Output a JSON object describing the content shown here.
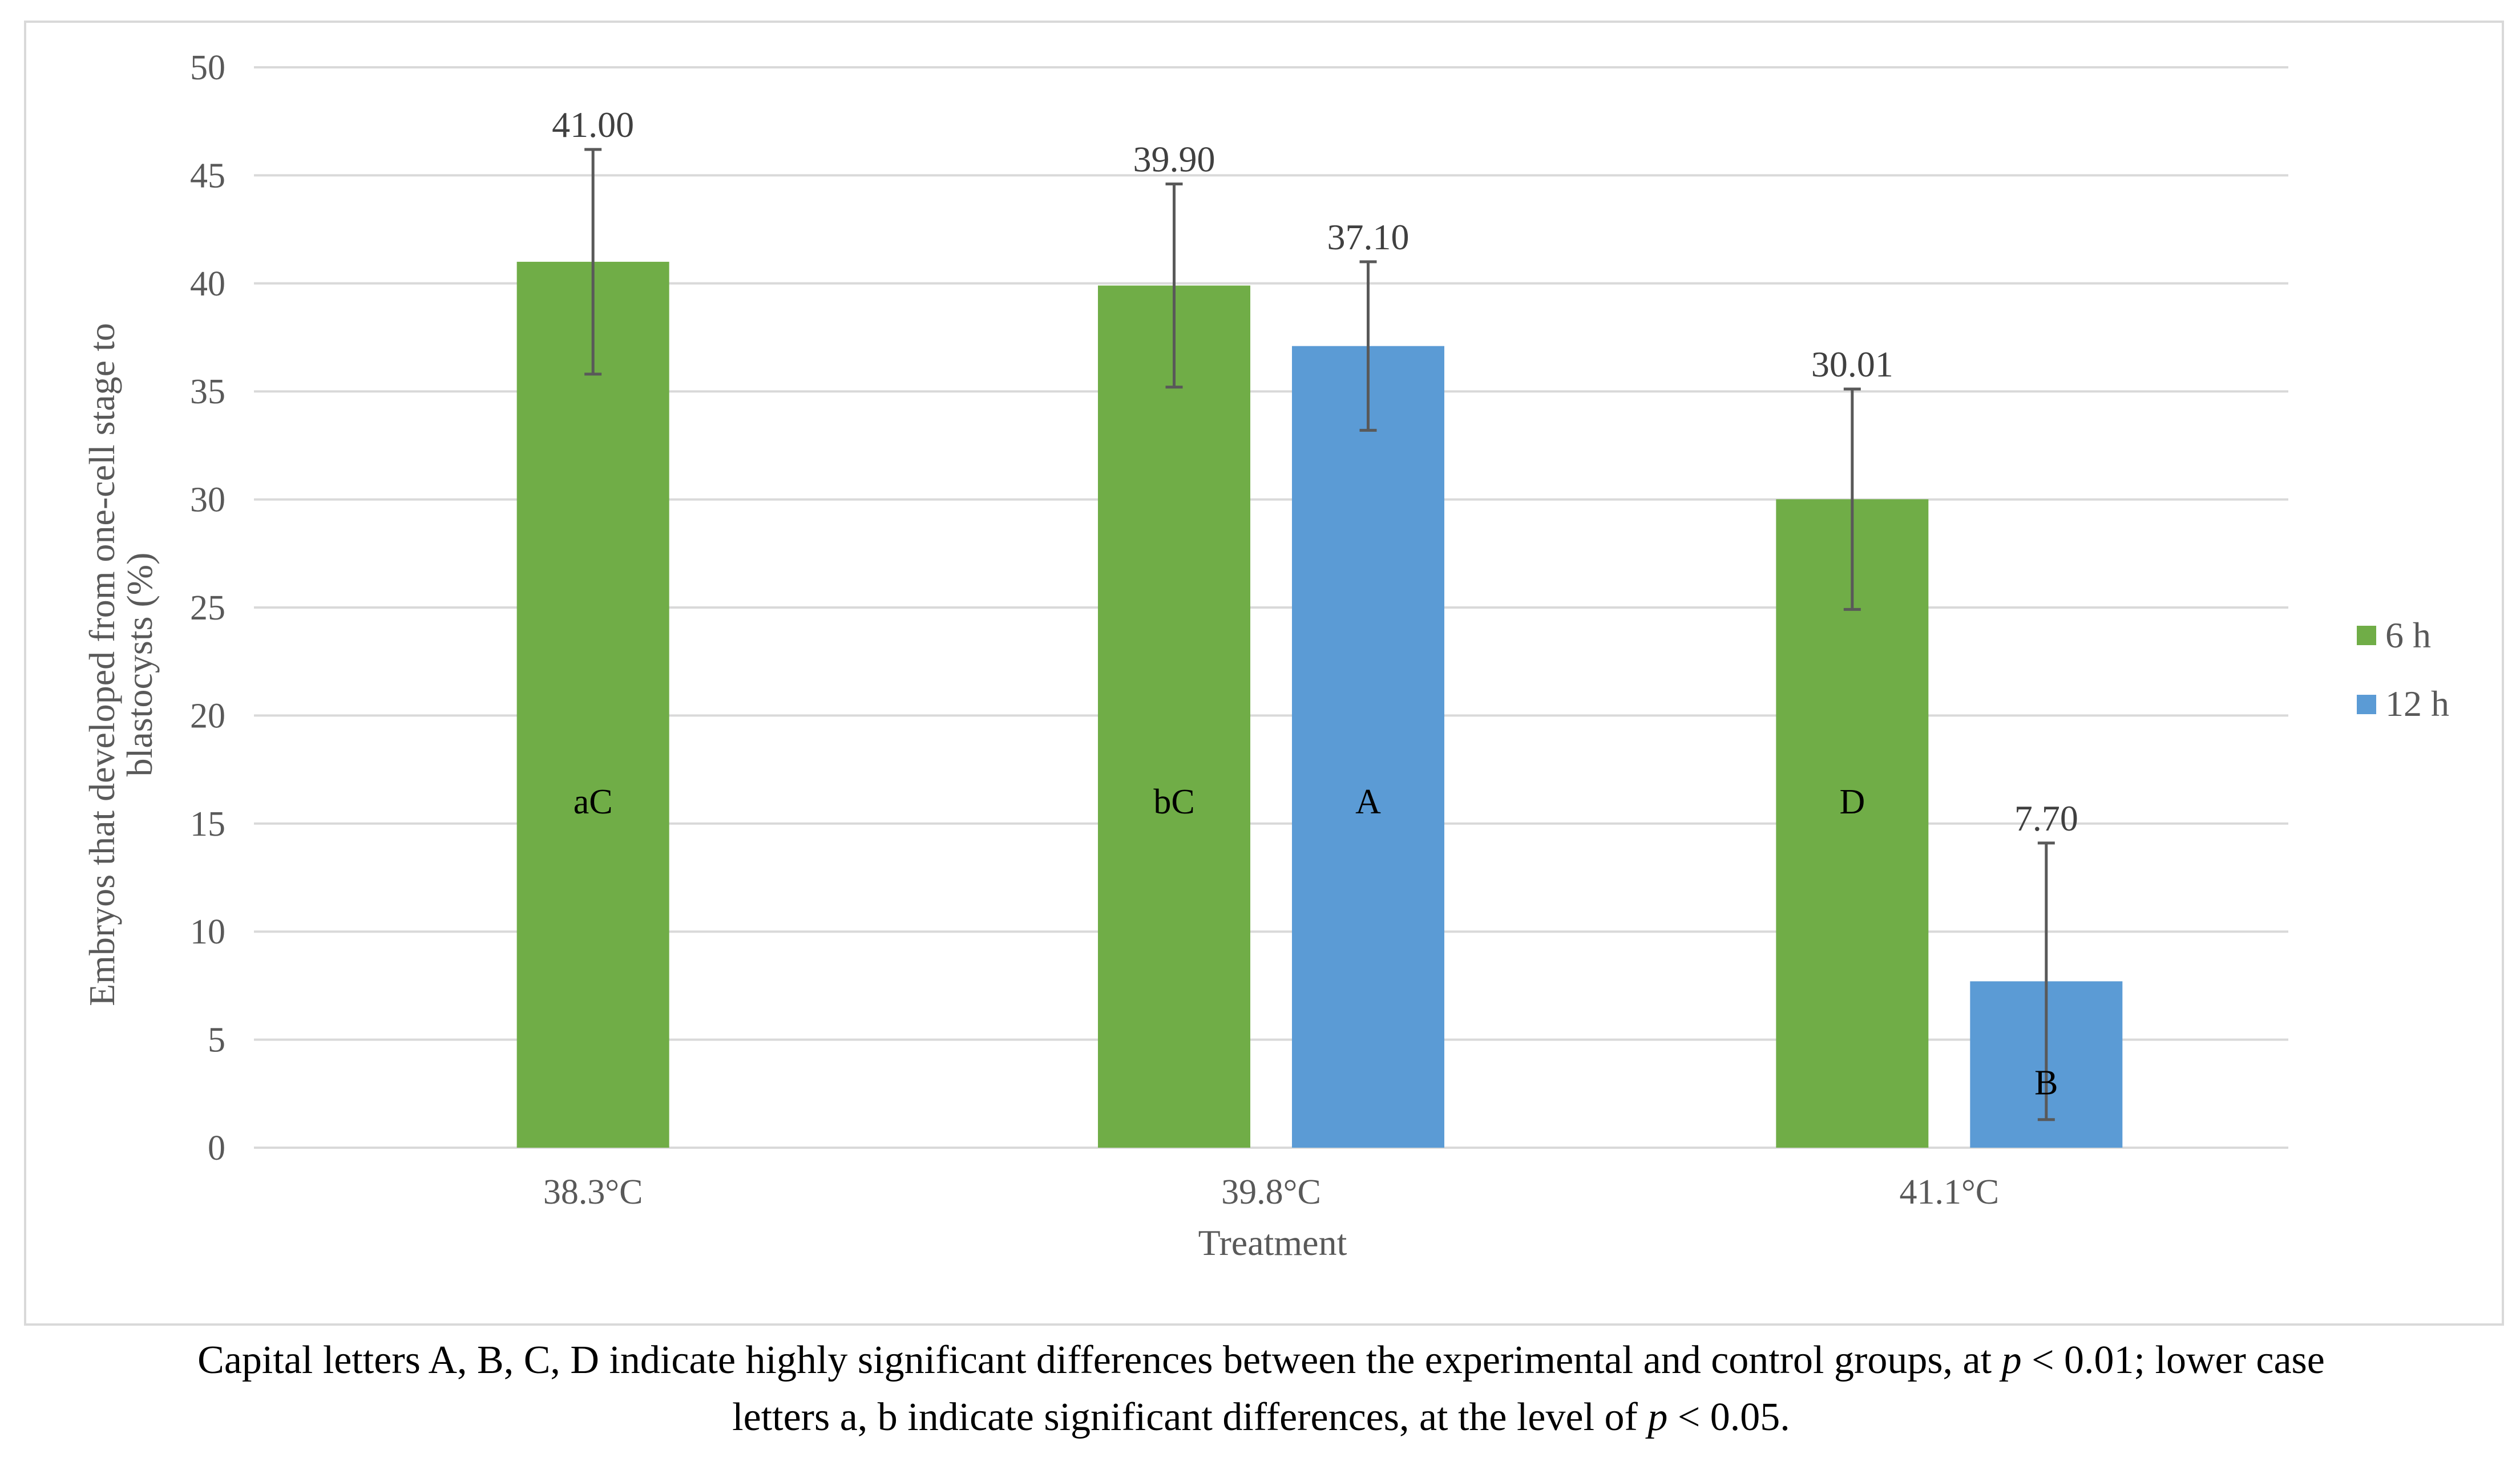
{
  "chart_data": {
    "type": "bar",
    "categories": [
      "38.3°C",
      "39.8°C",
      "41.1°C"
    ],
    "series": [
      {
        "name": "6 h",
        "color": "#70ad47",
        "values": [
          41.0,
          39.9,
          30.01
        ],
        "value_labels": [
          "41.00",
          "39.90",
          "30.01"
        ],
        "error": [
          5.2,
          4.7,
          5.1
        ],
        "letters": [
          "aC",
          "bC",
          "D"
        ]
      },
      {
        "name": "12 h",
        "color": "#5b9bd5",
        "values": [
          null,
          37.1,
          7.7
        ],
        "value_labels": [
          "",
          "37.10",
          "7.70"
        ],
        "error": [
          null,
          3.9,
          6.4
        ],
        "letters": [
          "",
          "A",
          "B"
        ]
      }
    ],
    "xlabel": "Treatment",
    "ylabel_lines": [
      "Embryos that developed from one-cell stage to",
      "blastocysts (%)"
    ],
    "ylim": [
      0,
      50
    ],
    "yticks": [
      0,
      5,
      10,
      15,
      20,
      25,
      30,
      35,
      40,
      45,
      50
    ],
    "grid": true,
    "legend_position": "right"
  },
  "caption": {
    "line1_before": "Capital letters A, B, C, D indicate highly significant differences between the experimental and control groups, at ",
    "p1": "p",
    "line1_after": " < 0.01; lower case",
    "line2_before": "letters a, b indicate significant differences, at the level of ",
    "p2": "p",
    "line2_after": " < 0.05."
  }
}
